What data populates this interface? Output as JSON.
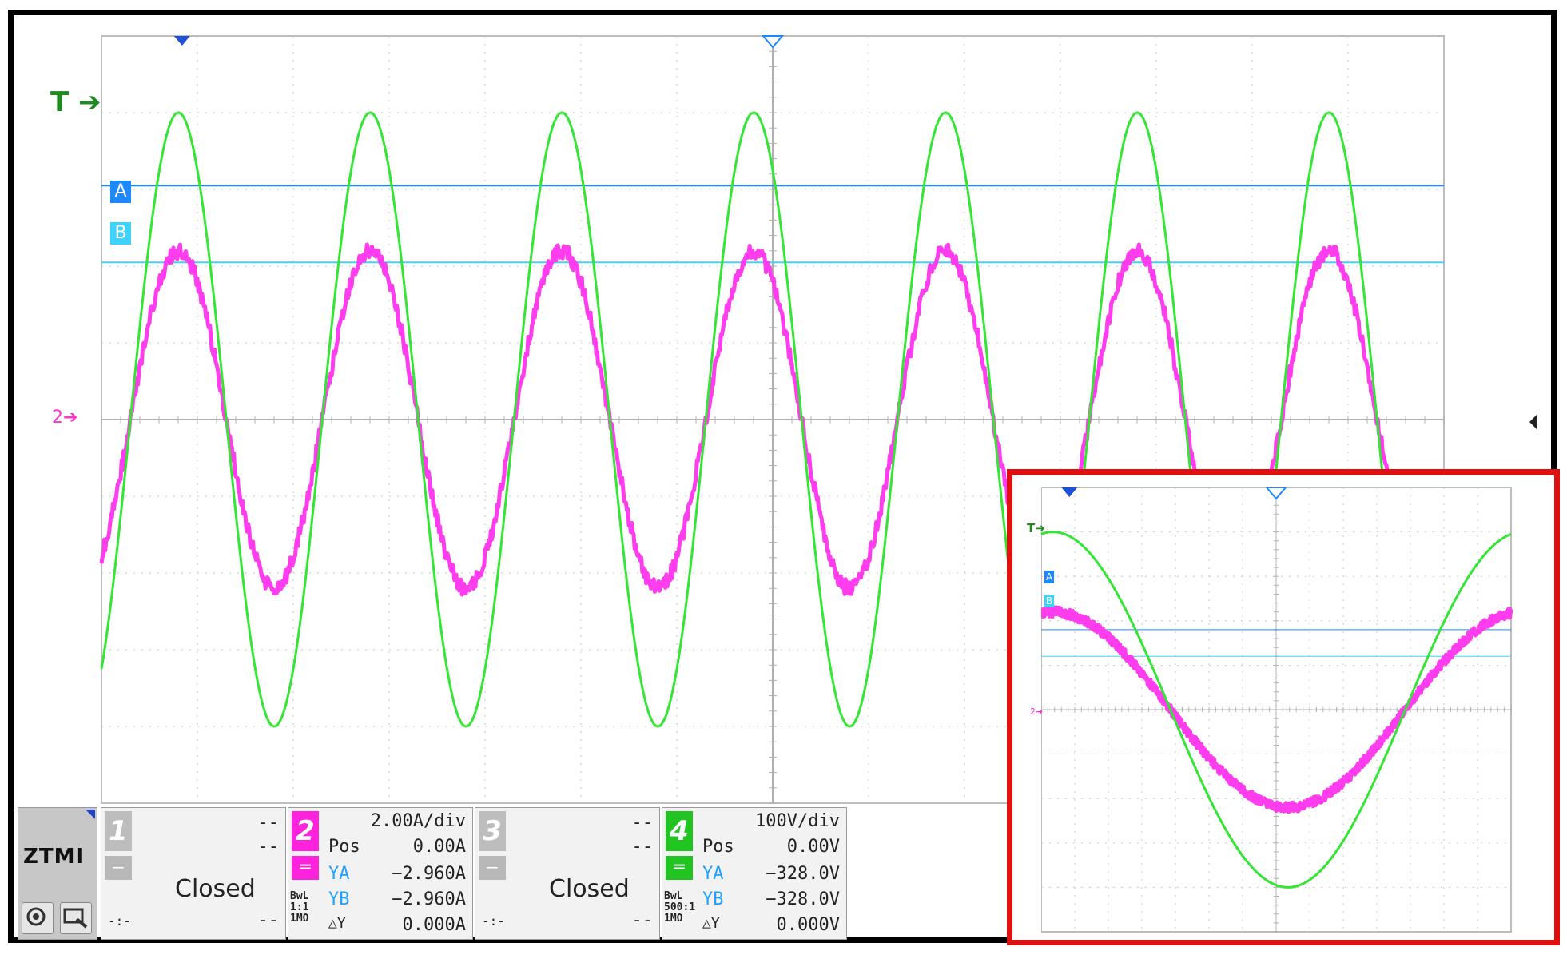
{
  "screen": {
    "trigger_label": "T",
    "reference_label": "2",
    "cursor_a": "A",
    "cursor_b": "B"
  },
  "brand": {
    "logo": "ZTMI"
  },
  "colors": {
    "voltage_trace": "#33e633",
    "current_trace": "#ff33ee",
    "cursor_a": "#1e88ff",
    "cursor_b": "#3fd2ff",
    "grid": "#c8c8c8",
    "inset_border": "#e01010"
  },
  "channels": [
    {
      "number": "1",
      "color": "#bdbdbd",
      "line1": "--",
      "line2": "--",
      "status": "Closed",
      "foot_left": "-:-",
      "foot_right": "--"
    },
    {
      "number": "2",
      "color": "#ff22dd",
      "scale": "2.00A/div",
      "pos_label": "Pos",
      "pos_value": "0.00A",
      "ya_label": "YA",
      "ya_value": "−2.960A",
      "yb_label": "YB",
      "yb_value": "−2.960A",
      "dy_label": "△Y",
      "dy_value": "0.000A",
      "coupling": "BwL",
      "probe": "1:1",
      "impedance": "1MΩ"
    },
    {
      "number": "3",
      "color": "#bdbdbd",
      "line1": "--",
      "line2": "--",
      "status": "Closed",
      "foot_left": "-:-",
      "foot_right": "--"
    },
    {
      "number": "4",
      "color": "#22c422",
      "scale": "100V/div",
      "pos_label": "Pos",
      "pos_value": "0.00V",
      "ya_label": "YA",
      "ya_value": "−328.0V",
      "yb_label": "YB",
      "yb_value": "−328.0V",
      "dy_label": "△Y",
      "dy_value": "0.000V",
      "coupling": "BwL",
      "probe": "500:1",
      "impedance": "1MΩ"
    }
  ],
  "chart_data": {
    "type": "line",
    "series": [
      {
        "name": "4",
        "amplitude_div": 4.0,
        "cycles_visible": 7,
        "color": "#33e633"
      },
      {
        "name": "2",
        "amplitude_div": 2.2,
        "cycles_visible": 7,
        "color": "#ff33ee"
      }
    ],
    "grid": {
      "x_divisions": 14,
      "y_divisions": 10
    }
  }
}
